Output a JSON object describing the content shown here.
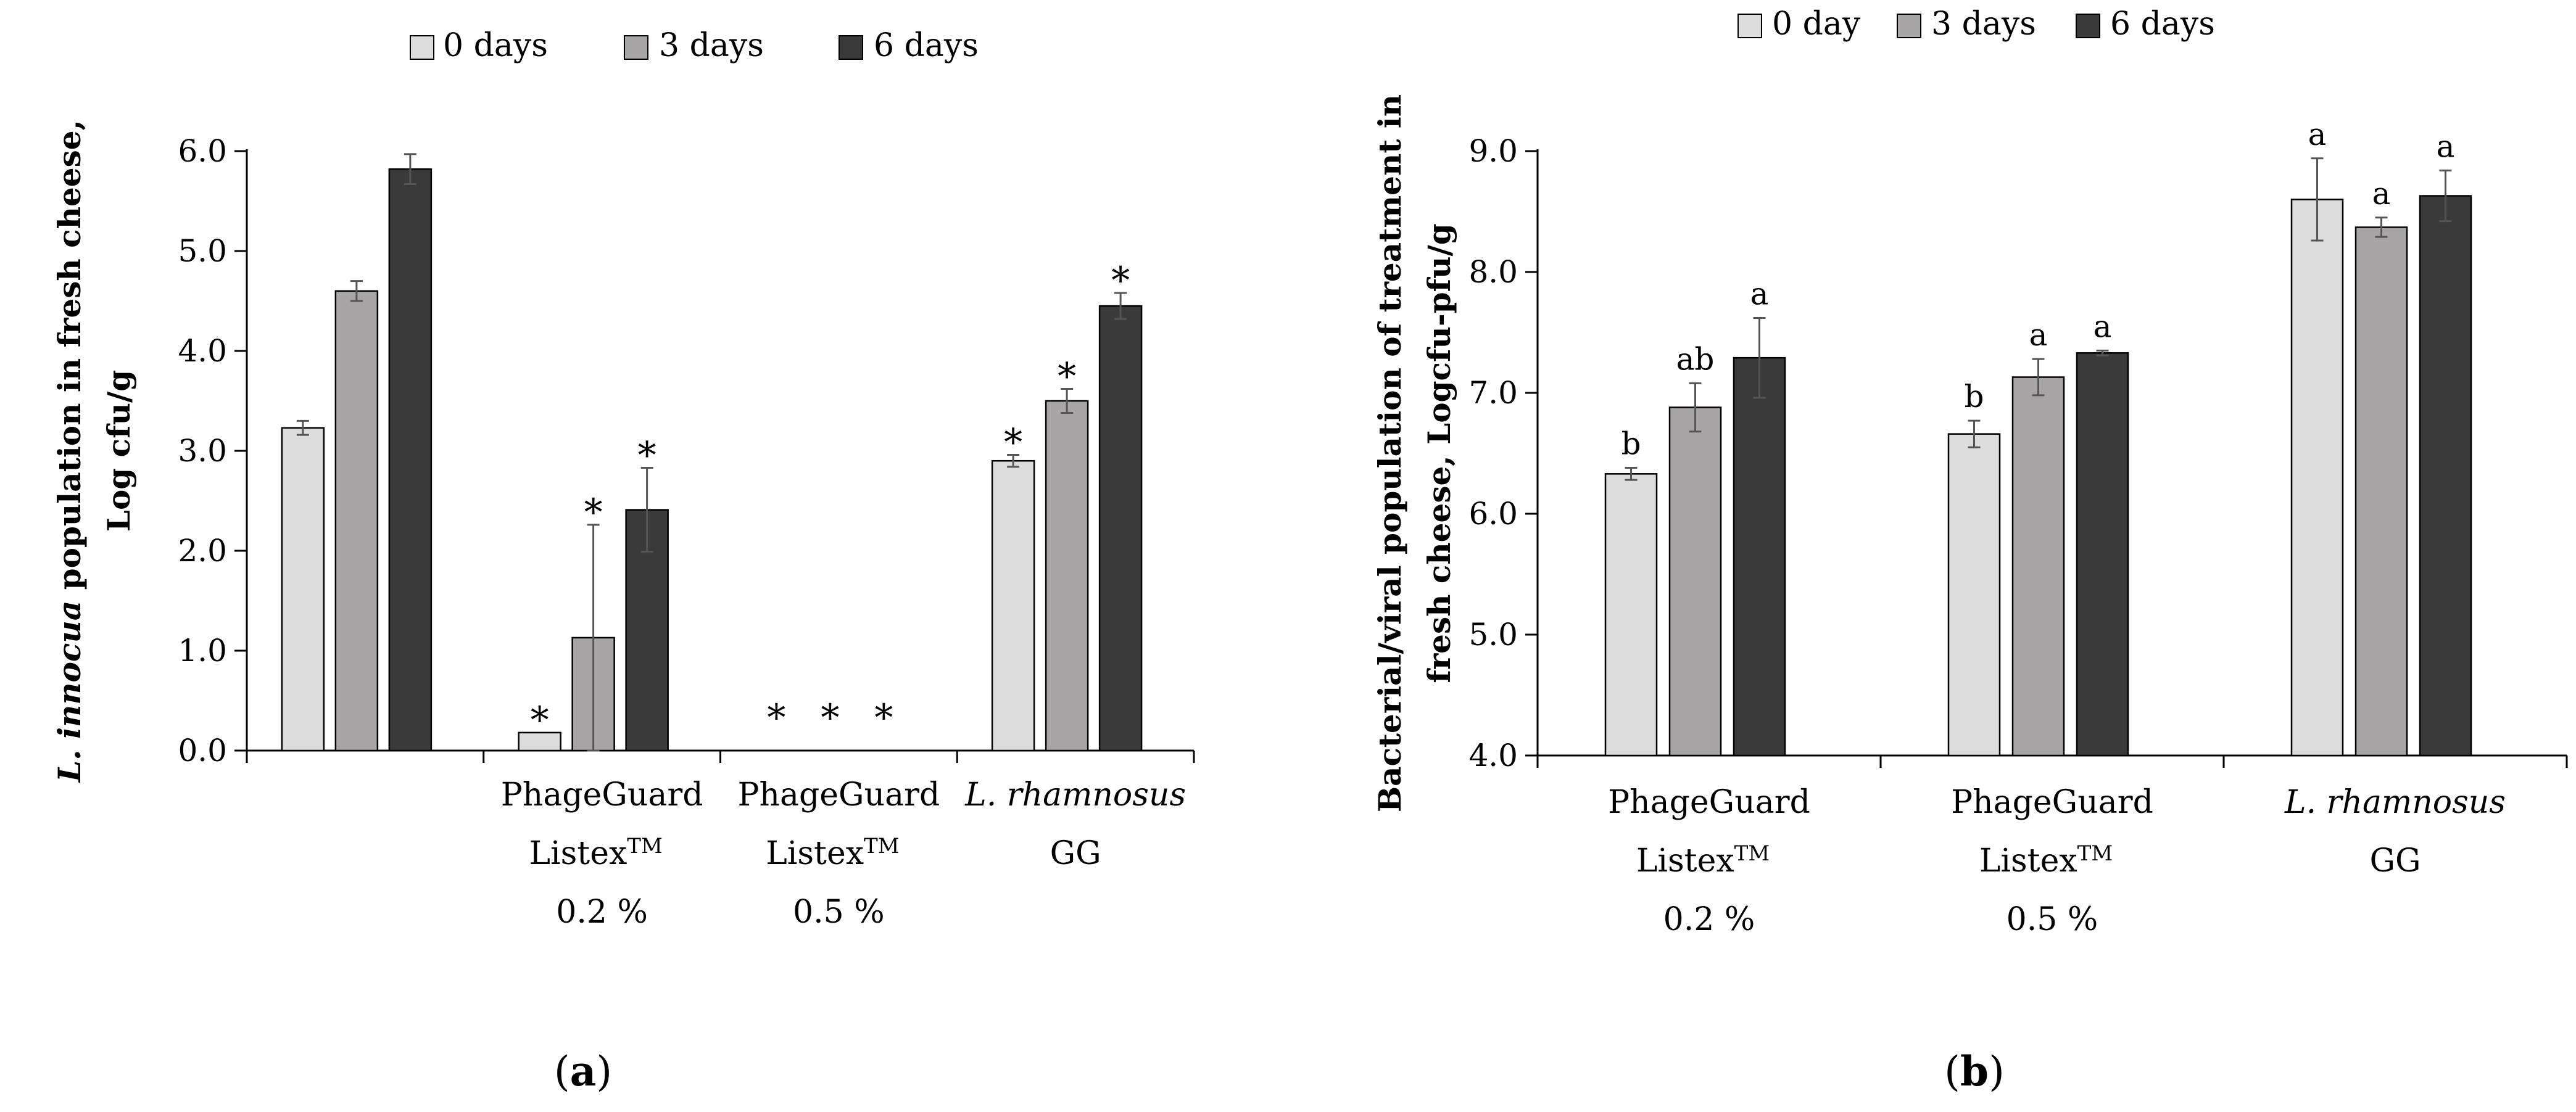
{
  "colors": {
    "day0": "#dcdcdc",
    "day3": "#a7a5a5",
    "day6": "#3a3a3a",
    "stroke": "#000000",
    "errbar": "#555555"
  },
  "chart_data": [
    {
      "panel_label": "(a)",
      "type": "bar",
      "ylabel_lines": [
        {
          "parts": [
            {
              "text": "L. innocua",
              "italic": true
            },
            {
              "text": " population in fresh cheese,",
              "italic": false
            }
          ]
        },
        {
          "parts": [
            {
              "text": "Log cfu/g",
              "italic": false
            }
          ]
        }
      ],
      "ylim": [
        0,
        6
      ],
      "yticks": [
        0,
        1,
        2,
        3,
        4,
        5,
        6
      ],
      "ytick_labels": [
        "0.0",
        "1.0",
        "2.0",
        "3.0",
        "4.0",
        "5.0",
        "6.0"
      ],
      "legend": [
        "0 days",
        "3 days",
        "6 days"
      ],
      "categories": [
        {
          "lines": []
        },
        {
          "lines": [
            {
              "text": "PhageGuard"
            },
            {
              "text": "Listex",
              "sup": "TM"
            },
            {
              "text": "0.2 %"
            }
          ]
        },
        {
          "lines": [
            {
              "text": "PhageGuard"
            },
            {
              "text": "Listex",
              "sup": "TM"
            },
            {
              "text": "0.5 %"
            }
          ]
        },
        {
          "lines": [
            {
              "text": "L. rhamnosus",
              "italic": true
            },
            {
              "text": "GG"
            }
          ]
        }
      ],
      "series": [
        {
          "name": "0 days",
          "values": [
            3.23,
            0.18,
            0,
            2.9
          ],
          "errors": [
            0.07,
            0,
            0,
            0.06
          ],
          "annotations": [
            "",
            "*",
            "*",
            "*"
          ]
        },
        {
          "name": "3 days",
          "values": [
            4.6,
            1.13,
            0,
            3.5
          ],
          "errors": [
            0.1,
            1.13,
            0,
            0.12
          ],
          "annotations": [
            "",
            "*",
            "*",
            "*"
          ]
        },
        {
          "name": "6 days",
          "values": [
            5.82,
            2.41,
            0,
            4.45
          ],
          "errors": [
            0.15,
            0.42,
            0,
            0.13
          ],
          "annotations": [
            "",
            "*",
            "*",
            "*"
          ]
        }
      ]
    },
    {
      "panel_label": "(b)",
      "type": "bar",
      "ylabel_lines": [
        {
          "parts": [
            {
              "text": "Bacterial/viral population of treatment in",
              "italic": false
            }
          ]
        },
        {
          "parts": [
            {
              "text": "fresh cheese, Logcfu-pfu/g",
              "italic": false
            }
          ]
        }
      ],
      "ylim": [
        4,
        9
      ],
      "yticks": [
        4,
        5,
        6,
        7,
        8,
        9
      ],
      "ytick_labels": [
        "4.0",
        "5.0",
        "6.0",
        "7.0",
        "8.0",
        "9.0"
      ],
      "legend": [
        "0 day",
        "3 days",
        "6 days"
      ],
      "categories": [
        {
          "lines": [
            {
              "text": "PhageGuard"
            },
            {
              "text": "Listex",
              "sup": "TM"
            },
            {
              "text": "0.2 %"
            }
          ]
        },
        {
          "lines": [
            {
              "text": "PhageGuard"
            },
            {
              "text": "Listex",
              "sup": "TM"
            },
            {
              "text": "0.5 %"
            }
          ]
        },
        {
          "lines": [
            {
              "text": "L. rhamnosus",
              "italic": true
            },
            {
              "text": "GG"
            }
          ]
        }
      ],
      "series": [
        {
          "name": "0 day",
          "values": [
            6.33,
            6.66,
            8.6
          ],
          "errors": [
            0.05,
            0.11,
            0.34
          ],
          "annotations": [
            "b",
            "b",
            "a"
          ]
        },
        {
          "name": "3 days",
          "values": [
            6.88,
            7.13,
            8.37
          ],
          "errors": [
            0.2,
            0.15,
            0.08
          ],
          "annotations": [
            "ab",
            "a",
            "a"
          ]
        },
        {
          "name": "6 days",
          "values": [
            7.29,
            7.33,
            8.63
          ],
          "errors": [
            0.33,
            0.02,
            0.21
          ],
          "annotations": [
            "a",
            "a",
            "a"
          ]
        }
      ]
    }
  ]
}
